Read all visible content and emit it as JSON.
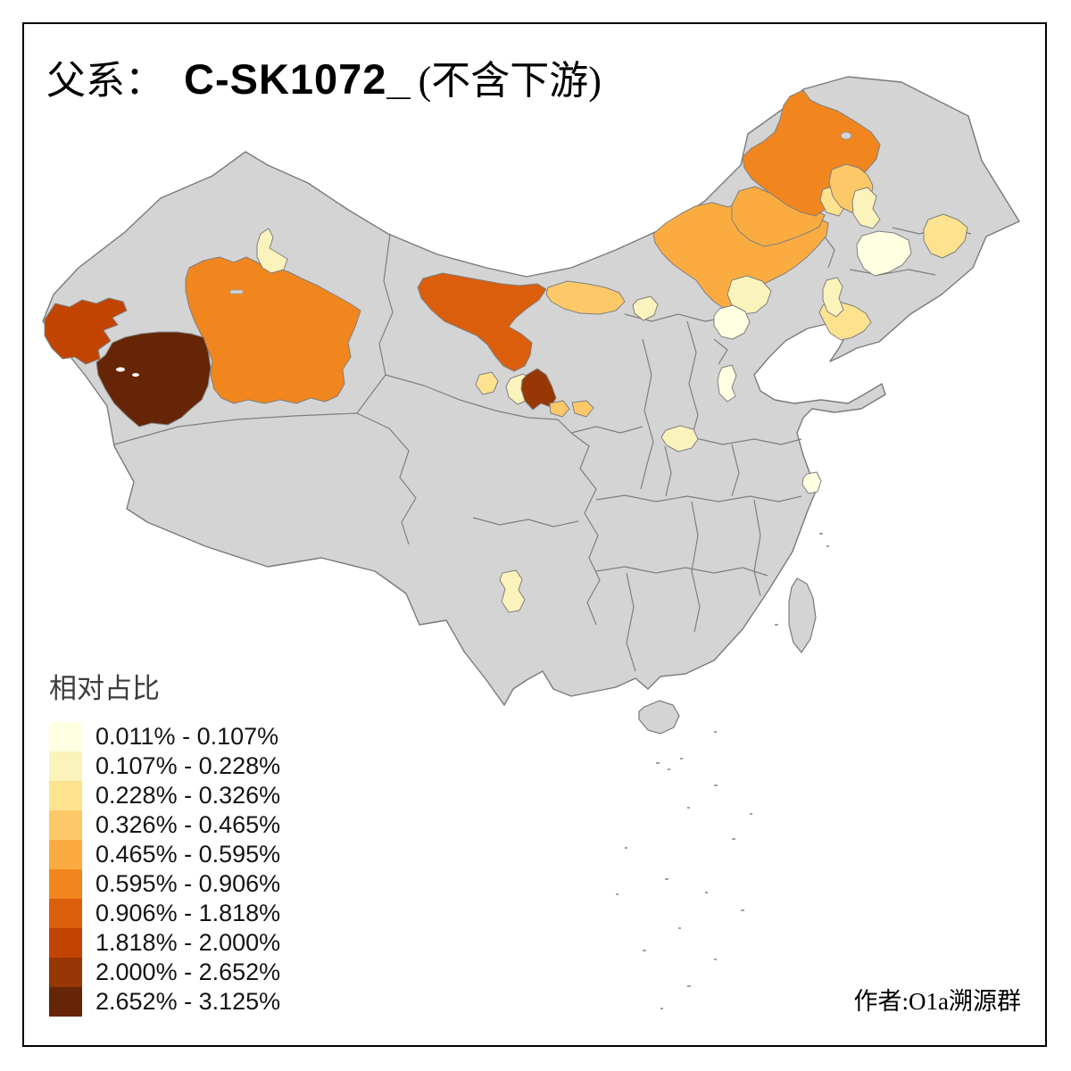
{
  "page": {
    "title_prefix": "父系：",
    "title_haplogroup": "C-SK1072_",
    "title_suffix": "(不含下游)",
    "attribution": "作者:O1a溯源群"
  },
  "legend": {
    "title": "相对占比"
  },
  "chart_data": {
    "type": "choropleth",
    "title": "父系： C-SK1072_ (不含下游)",
    "legend_title": "相对占比",
    "legend_position": "bottom-left",
    "base_map": {
      "land": "#D4D4D4",
      "border": "#7F7F7F",
      "sea": "#FFFFFF"
    },
    "classes": [
      {
        "label": "0.011% - 0.107%",
        "color": "#FFFFE2"
      },
      {
        "label": "0.107% - 0.228%",
        "color": "#FBF3BC"
      },
      {
        "label": "0.228% - 0.326%",
        "color": "#FDE38F"
      },
      {
        "label": "0.326% - 0.465%",
        "color": "#FDC968"
      },
      {
        "label": "0.465% - 0.595%",
        "color": "#FBAC40"
      },
      {
        "label": "0.595% - 0.906%",
        "color": "#F1861F"
      },
      {
        "label": "0.906% - 1.818%",
        "color": "#DB5E0C"
      },
      {
        "label": "1.818% - 2.000%",
        "color": "#C24403"
      },
      {
        "label": "2.000% - 2.652%",
        "color": "#963704"
      },
      {
        "label": "2.652% - 3.125%",
        "color": "#662506"
      }
    ],
    "regions": [
      {
        "id": "kashgar-kizilsu",
        "class": 8
      },
      {
        "id": "hotan",
        "class": 10
      },
      {
        "id": "bayingolin",
        "class": 6
      },
      {
        "id": "urumqi-changji",
        "class": 2
      },
      {
        "id": "jiuquan-zhangye",
        "class": 7
      },
      {
        "id": "wuwei-lanzhou",
        "class": 9
      },
      {
        "id": "qinghai-east",
        "class": 3
      },
      {
        "id": "gansu-central",
        "class": 2
      },
      {
        "id": "gannan-west",
        "class": 4
      },
      {
        "id": "gannan-east",
        "class": 4
      },
      {
        "id": "bayannur-alxa",
        "class": 4
      },
      {
        "id": "xilingol-chifeng",
        "class": 5
      },
      {
        "id": "xingan-league",
        "class": 5
      },
      {
        "id": "hulunbuir",
        "class": 6
      },
      {
        "id": "tongliao-north",
        "class": 3
      },
      {
        "id": "qiqihar",
        "class": 4
      },
      {
        "id": "nen-suihua",
        "class": 2
      },
      {
        "id": "harbin",
        "class": 1
      },
      {
        "id": "jiamusi-hegang",
        "class": 3
      },
      {
        "id": "chaoyang",
        "class": 2
      },
      {
        "id": "beijing",
        "class": 1
      },
      {
        "id": "liaodong",
        "class": 3
      },
      {
        "id": "shenyang-strip",
        "class": 2
      },
      {
        "id": "shanxi-strip",
        "class": 1
      },
      {
        "id": "hohhot",
        "class": 2
      },
      {
        "id": "zhengzhou",
        "class": 2
      },
      {
        "id": "shanghai",
        "class": 1
      },
      {
        "id": "chuxiong-yunnan",
        "class": 2
      }
    ]
  }
}
